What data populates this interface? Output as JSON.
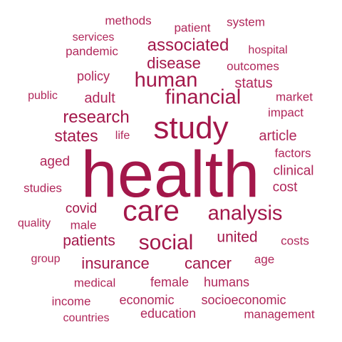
{
  "colors": {
    "dark": "#a3174a",
    "light": "#b0275a"
  },
  "words": [
    {
      "text": "health",
      "weight": 100
    },
    {
      "text": "study",
      "weight": 52
    },
    {
      "text": "care",
      "weight": 48
    },
    {
      "text": "financial",
      "weight": 30
    },
    {
      "text": "human",
      "weight": 30
    },
    {
      "text": "social",
      "weight": 30
    },
    {
      "text": "analysis",
      "weight": 28
    },
    {
      "text": "research",
      "weight": 24
    },
    {
      "text": "states",
      "weight": 22
    },
    {
      "text": "insurance",
      "weight": 22
    },
    {
      "text": "cancer",
      "weight": 22
    },
    {
      "text": "associated",
      "weight": 22
    },
    {
      "text": "disease",
      "weight": 21
    },
    {
      "text": "patients",
      "weight": 21
    },
    {
      "text": "united",
      "weight": 20
    },
    {
      "text": "covid",
      "weight": 20
    },
    {
      "text": "article",
      "weight": 19
    },
    {
      "text": "status",
      "weight": 18
    },
    {
      "text": "adult",
      "weight": 18
    },
    {
      "text": "clinical",
      "weight": 18
    },
    {
      "text": "female",
      "weight": 17
    },
    {
      "text": "policy",
      "weight": 17
    },
    {
      "text": "aged",
      "weight": 17
    },
    {
      "text": "cost",
      "weight": 16
    },
    {
      "text": "outcomes",
      "weight": 15
    },
    {
      "text": "impact",
      "weight": 14
    },
    {
      "text": "market",
      "weight": 14
    },
    {
      "text": "factors",
      "weight": 14
    },
    {
      "text": "male",
      "weight": 14
    },
    {
      "text": "humans",
      "weight": 14
    },
    {
      "text": "economic",
      "weight": 14
    },
    {
      "text": "studies",
      "weight": 14
    },
    {
      "text": "socioeconomic",
      "weight": 14
    },
    {
      "text": "pandemic",
      "weight": 13
    },
    {
      "text": "life",
      "weight": 13
    },
    {
      "text": "age",
      "weight": 13
    },
    {
      "text": "medical",
      "weight": 13
    },
    {
      "text": "education",
      "weight": 13
    },
    {
      "text": "patient",
      "weight": 13
    },
    {
      "text": "income",
      "weight": 13
    },
    {
      "text": "costs",
      "weight": 13
    },
    {
      "text": "management",
      "weight": 13
    },
    {
      "text": "methods",
      "weight": 12
    },
    {
      "text": "system",
      "weight": 12
    },
    {
      "text": "services",
      "weight": 12
    },
    {
      "text": "hospital",
      "weight": 12
    },
    {
      "text": "public",
      "weight": 12
    },
    {
      "text": "group",
      "weight": 12
    },
    {
      "text": "countries",
      "weight": 12
    },
    {
      "text": "quality",
      "weight": 11
    }
  ]
}
